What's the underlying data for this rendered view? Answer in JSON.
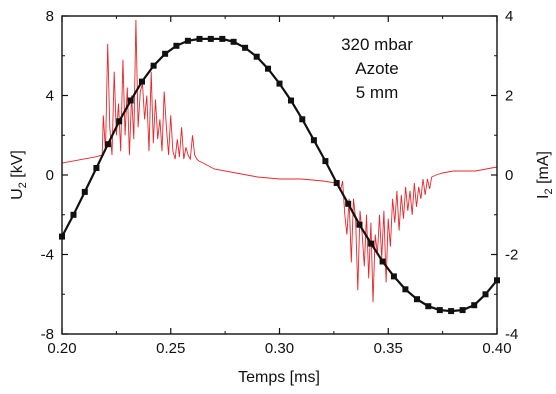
{
  "chart_data": {
    "type": "line",
    "title": "",
    "xlabel": "Temps [ms]",
    "ylabel_left": "U<sub>2</sub> [kV]",
    "ylabel_left_parts": [
      "U",
      "2",
      " [kV]"
    ],
    "ylabel_right_parts": [
      "I",
      "2",
      " [mA]"
    ],
    "xlim": [
      0.2,
      0.4
    ],
    "ylim_left": [
      -8,
      8
    ],
    "ylim_right": [
      -4,
      4
    ],
    "x_ticks": [
      "0.20",
      "0.25",
      "0.30",
      "0.35",
      "0.40"
    ],
    "y_left_ticks": [
      "-8",
      "-4",
      "0",
      "4",
      "8"
    ],
    "y_right_ticks": [
      "-4",
      "-2",
      "0",
      "2",
      "4"
    ],
    "grid": false,
    "annotations": [
      "320 mbar",
      "Azote",
      "5 mm"
    ],
    "colors": {
      "voltage": "#111111",
      "current": "#e8262b",
      "axes": "#111111"
    },
    "series": [
      {
        "axis": "left",
        "marker": "square",
        "x": [
          0.2,
          0.2053,
          0.2105,
          0.2158,
          0.2211,
          0.2263,
          0.2316,
          0.2368,
          0.2421,
          0.2474,
          0.2526,
          0.2579,
          0.2632,
          0.2684,
          0.2737,
          0.2789,
          0.2842,
          0.2895,
          0.2947,
          0.3,
          0.3053,
          0.3105,
          0.3158,
          0.3211,
          0.3263,
          0.3316,
          0.3368,
          0.3421,
          0.3474,
          0.3526,
          0.3579,
          0.3632,
          0.3684,
          0.3737,
          0.3789,
          0.3842,
          0.3895,
          0.3947,
          0.4
        ],
        "y": [
          -3.1,
          -2.0,
          -0.85,
          0.35,
          1.55,
          2.7,
          3.75,
          4.7,
          5.5,
          6.1,
          6.5,
          6.75,
          6.85,
          6.85,
          6.85,
          6.7,
          6.4,
          5.95,
          5.35,
          4.6,
          3.75,
          2.8,
          1.75,
          0.7,
          -0.4,
          -1.45,
          -2.5,
          -3.45,
          -4.35,
          -5.1,
          -5.75,
          -6.25,
          -6.6,
          -6.8,
          -6.85,
          -6.8,
          -6.55,
          -6.0,
          -5.3
        ]
      },
      {
        "axis": "right",
        "marker": "none",
        "x": [
          0.2,
          0.205,
          0.21,
          0.215,
          0.2185,
          0.219,
          0.22,
          0.221,
          0.222,
          0.223,
          0.224,
          0.225,
          0.226,
          0.227,
          0.228,
          0.229,
          0.23,
          0.231,
          0.232,
          0.233,
          0.234,
          0.235,
          0.236,
          0.237,
          0.238,
          0.239,
          0.24,
          0.241,
          0.242,
          0.243,
          0.244,
          0.245,
          0.246,
          0.247,
          0.248,
          0.249,
          0.25,
          0.251,
          0.252,
          0.253,
          0.254,
          0.255,
          0.256,
          0.257,
          0.258,
          0.259,
          0.26,
          0.261,
          0.262,
          0.263,
          0.265,
          0.27,
          0.28,
          0.29,
          0.3,
          0.31,
          0.32,
          0.326,
          0.328,
          0.329,
          0.33,
          0.331,
          0.332,
          0.333,
          0.334,
          0.335,
          0.336,
          0.337,
          0.338,
          0.339,
          0.34,
          0.341,
          0.342,
          0.343,
          0.344,
          0.345,
          0.346,
          0.347,
          0.348,
          0.349,
          0.35,
          0.351,
          0.352,
          0.353,
          0.354,
          0.355,
          0.356,
          0.357,
          0.358,
          0.359,
          0.36,
          0.361,
          0.362,
          0.363,
          0.364,
          0.365,
          0.366,
          0.367,
          0.368,
          0.369,
          0.37,
          0.372,
          0.375,
          0.38,
          0.385,
          0.39,
          0.395,
          0.4
        ],
        "y": [
          0.3,
          0.35,
          0.4,
          0.45,
          0.5,
          1.5,
          0.6,
          3.3,
          1.2,
          0.5,
          2.6,
          1.0,
          1.8,
          0.6,
          2.9,
          1.0,
          2.2,
          0.5,
          2.0,
          0.9,
          3.9,
          1.2,
          2.1,
          2.3,
          1.4,
          2.0,
          0.6,
          2.6,
          0.8,
          1.9,
          0.9,
          1.4,
          0.6,
          2.1,
          1.2,
          0.5,
          1.5,
          0.6,
          0.4,
          0.9,
          0.45,
          1.2,
          0.4,
          0.7,
          0.5,
          0.4,
          1.0,
          0.5,
          0.4,
          0.35,
          0.3,
          0.15,
          0.05,
          -0.05,
          -0.1,
          -0.1,
          -0.15,
          -0.2,
          -0.4,
          -0.15,
          -1.0,
          -1.5,
          -0.6,
          -2.2,
          -0.6,
          -1.1,
          -2.9,
          -0.9,
          -1.5,
          -2.3,
          -1.0,
          -2.6,
          -1.2,
          -3.2,
          -1.5,
          -2.0,
          -1.0,
          -2.1,
          -0.9,
          -2.7,
          -1.1,
          -1.8,
          -0.6,
          -1.2,
          -0.4,
          -1.4,
          -0.5,
          -1.1,
          -0.3,
          -0.9,
          -0.4,
          -1.0,
          -0.2,
          -0.8,
          -0.3,
          -0.6,
          -0.1,
          -0.5,
          -0.1,
          -0.35,
          -0.05,
          0.0,
          0.05,
          0.1,
          0.1,
          0.1,
          0.15,
          0.2
        ]
      }
    ]
  }
}
